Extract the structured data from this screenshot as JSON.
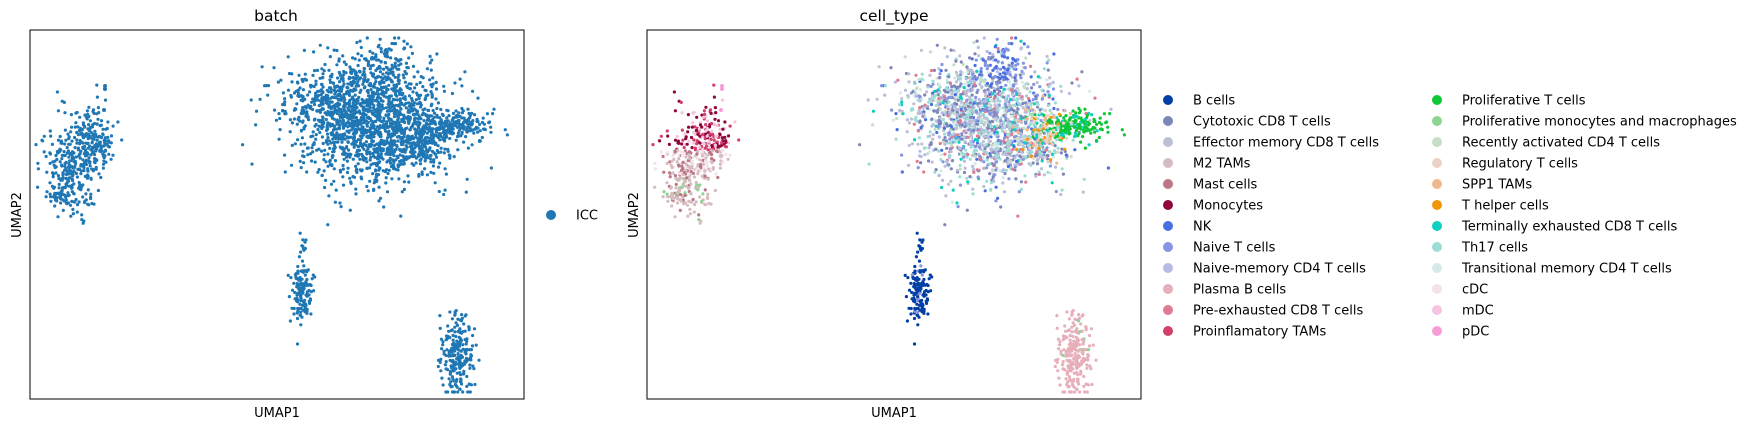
{
  "chart_data": [
    {
      "type": "scatter",
      "title": "batch",
      "xlabel": "UMAP1",
      "ylabel": "UMAP2",
      "grid": false,
      "ticks": false,
      "legend_placement": "right",
      "legend": [
        {
          "name": "ICC",
          "color": "#1f77b4"
        }
      ],
      "clusters": [
        {
          "name": "ICC",
          "color": "#1f77b4"
        }
      ]
    },
    {
      "type": "scatter",
      "title": "cell_type",
      "xlabel": "UMAP1",
      "ylabel": "UMAP2",
      "grid": false,
      "ticks": false,
      "legend_placement": "right",
      "legend_columns": 2,
      "legend": [
        {
          "name": "B cells",
          "color": "#023fa5"
        },
        {
          "name": "Cytotoxic CD8 T cells",
          "color": "#7d87b9"
        },
        {
          "name": "Effector memory CD8 T cells",
          "color": "#bec1d4"
        },
        {
          "name": "M2 TAMs",
          "color": "#d6bcc0"
        },
        {
          "name": "Mast cells",
          "color": "#bb7784"
        },
        {
          "name": "Monocytes",
          "color": "#8e063b"
        },
        {
          "name": "NK",
          "color": "#4a6fe3"
        },
        {
          "name": "Naive T cells",
          "color": "#8595e1"
        },
        {
          "name": "Naive-memory CD4 T cells",
          "color": "#b5bbe3"
        },
        {
          "name": "Plasma B cells",
          "color": "#e6afb9"
        },
        {
          "name": "Pre-exhausted CD8 T cells",
          "color": "#e07b91"
        },
        {
          "name": "Proinflamatory TAMs",
          "color": "#d33f6a"
        },
        {
          "name": "Proliferative T cells",
          "color": "#11c638"
        },
        {
          "name": "Proliferative monocytes and macrophages",
          "color": "#8dd593"
        },
        {
          "name": "Recently activated CD4 T cells",
          "color": "#c6dec7"
        },
        {
          "name": "Regulatory T cells",
          "color": "#ead3c6"
        },
        {
          "name": "SPP1 TAMs",
          "color": "#f0b98d"
        },
        {
          "name": "T helper cells",
          "color": "#ef9708"
        },
        {
          "name": "Terminally exhausted CD8 T cells",
          "color": "#0fcfc0"
        },
        {
          "name": "Th17 cells",
          "color": "#9cded6"
        },
        {
          "name": "Transitional memory CD4 T cells",
          "color": "#d5eae7"
        },
        {
          "name": "cDC",
          "color": "#f3e1eb"
        },
        {
          "name": "mDC",
          "color": "#f6c4e1"
        },
        {
          "name": "pDC",
          "color": "#f79cd4"
        }
      ]
    }
  ]
}
